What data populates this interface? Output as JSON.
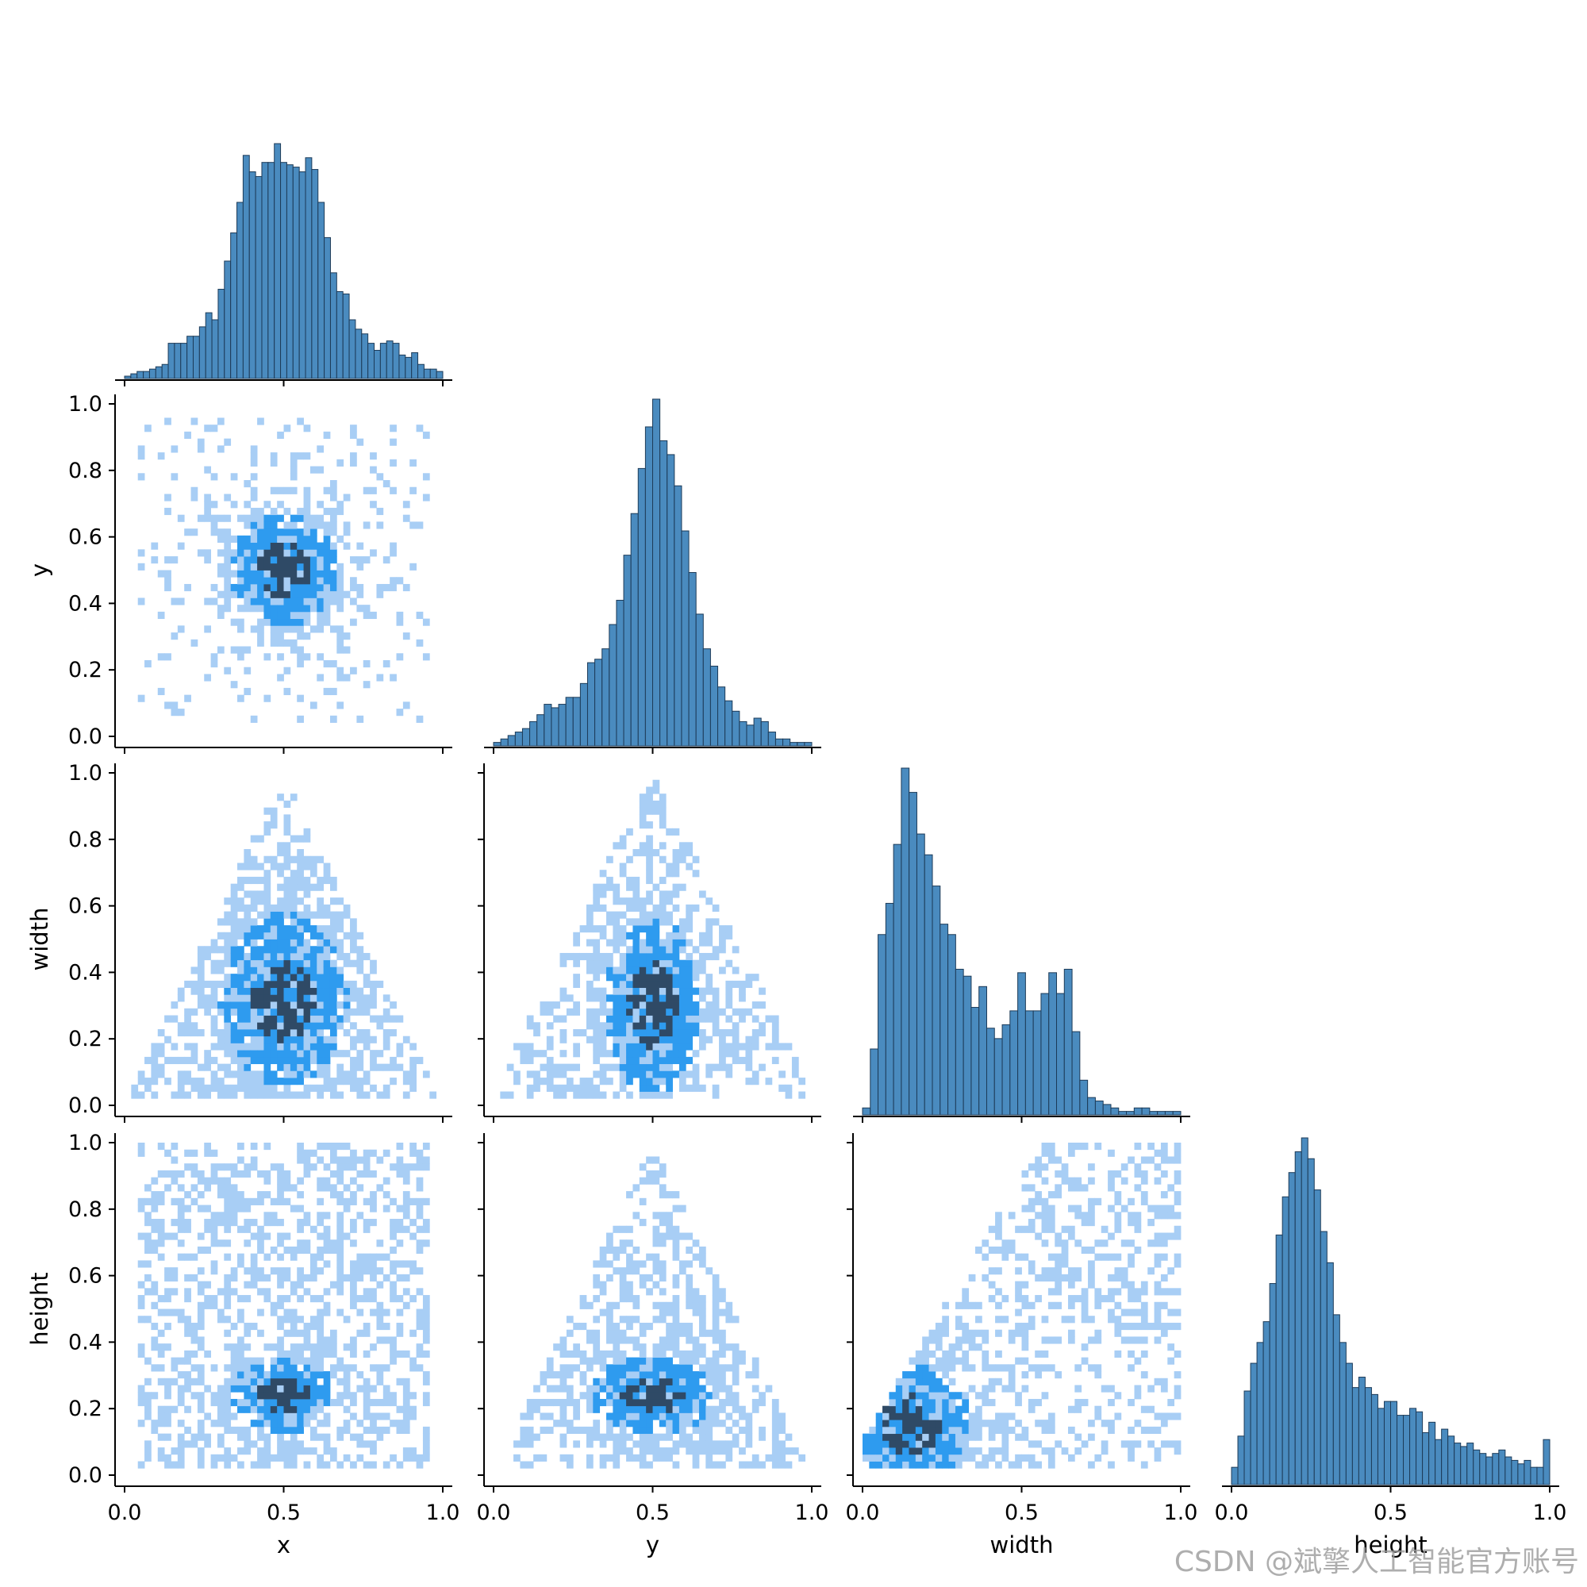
{
  "chart_data": {
    "type": "pairplot",
    "variables": [
      "x",
      "y",
      "width",
      "height"
    ],
    "axis_range": [
      0,
      1
    ],
    "x_ticks": [
      "0.0",
      "0.5",
      "1.0"
    ],
    "y_ticks": [
      "0.0",
      "0.2",
      "0.4",
      "0.6",
      "0.8",
      "1.0"
    ],
    "layout": "corner (lower triangle); histograms on diagonal, 2D histograms below",
    "grid": false,
    "colors": {
      "hist_fill": "#4a8bbf",
      "hist_edge": "#1d3b58",
      "heat_light": "#a8cef5",
      "heat_mid": "#2e9bef",
      "heat_dark": "#2f4a66"
    },
    "diagonal_histograms": [
      {
        "variable": "x",
        "relative_counts": [
          0.01,
          0.02,
          0.03,
          0.03,
          0.04,
          0.05,
          0.06,
          0.15,
          0.15,
          0.15,
          0.18,
          0.18,
          0.22,
          0.28,
          0.25,
          0.38,
          0.5,
          0.62,
          0.75,
          0.95,
          0.88,
          0.86,
          0.92,
          0.92,
          1.0,
          0.92,
          0.91,
          0.9,
          0.88,
          0.94,
          0.89,
          0.75,
          0.6,
          0.45,
          0.37,
          0.36,
          0.25,
          0.21,
          0.19,
          0.15,
          0.12,
          0.15,
          0.16,
          0.15,
          0.1,
          0.09,
          0.11,
          0.06,
          0.04,
          0.04,
          0.03
        ]
      },
      {
        "variable": "y",
        "relative_counts": [
          0.01,
          0.02,
          0.03,
          0.04,
          0.05,
          0.07,
          0.09,
          0.12,
          0.11,
          0.12,
          0.14,
          0.14,
          0.18,
          0.24,
          0.25,
          0.28,
          0.35,
          0.42,
          0.55,
          0.67,
          0.8,
          0.92,
          1.0,
          0.88,
          0.84,
          0.75,
          0.62,
          0.5,
          0.38,
          0.28,
          0.23,
          0.17,
          0.13,
          0.1,
          0.07,
          0.06,
          0.08,
          0.07,
          0.04,
          0.02,
          0.02,
          0.01,
          0.01,
          0.01
        ]
      },
      {
        "variable": "width",
        "relative_counts": [
          0.02,
          0.19,
          0.52,
          0.61,
          0.78,
          1.0,
          0.93,
          0.81,
          0.75,
          0.66,
          0.55,
          0.52,
          0.42,
          0.4,
          0.31,
          0.37,
          0.25,
          0.22,
          0.26,
          0.3,
          0.41,
          0.3,
          0.3,
          0.35,
          0.41,
          0.35,
          0.42,
          0.24,
          0.1,
          0.05,
          0.04,
          0.03,
          0.02,
          0.01,
          0.01,
          0.02,
          0.02,
          0.01,
          0.01,
          0.01,
          0.01
        ]
      },
      {
        "variable": "height",
        "relative_counts": [
          0.05,
          0.14,
          0.27,
          0.35,
          0.41,
          0.47,
          0.58,
          0.72,
          0.83,
          0.9,
          0.96,
          1.0,
          0.94,
          0.85,
          0.73,
          0.64,
          0.49,
          0.41,
          0.35,
          0.28,
          0.31,
          0.28,
          0.26,
          0.22,
          0.24,
          0.24,
          0.2,
          0.2,
          0.22,
          0.21,
          0.15,
          0.18,
          0.13,
          0.16,
          0.14,
          0.12,
          0.11,
          0.12,
          0.1,
          0.09,
          0.08,
          0.09,
          0.1,
          0.08,
          0.07,
          0.06,
          0.07,
          0.05,
          0.05,
          0.13
        ]
      }
    ],
    "heatmap_panels": [
      {
        "x": "x",
        "y": "y",
        "pattern": "round cluster centered near (0.5, 0.5)"
      },
      {
        "x": "x",
        "y": "width",
        "pattern": "triangle with apex at (0.5, 1.0); dense band at width 0.1–0.6"
      },
      {
        "x": "y",
        "y": "width",
        "pattern": "dense near width 0.1–0.6, around y 0.5"
      },
      {
        "x": "x",
        "y": "height",
        "pattern": "dense near height 0.2–0.3, x 0.3–0.6"
      },
      {
        "x": "y",
        "y": "height",
        "pattern": "triangle with apex at (0.5, 1.0); dense near height 0.2–0.3"
      },
      {
        "x": "width",
        "y": "height",
        "pattern": "positive relation; dense at small width, small height"
      }
    ]
  },
  "watermark": "CSDN @斌擎人工智能官方账号"
}
